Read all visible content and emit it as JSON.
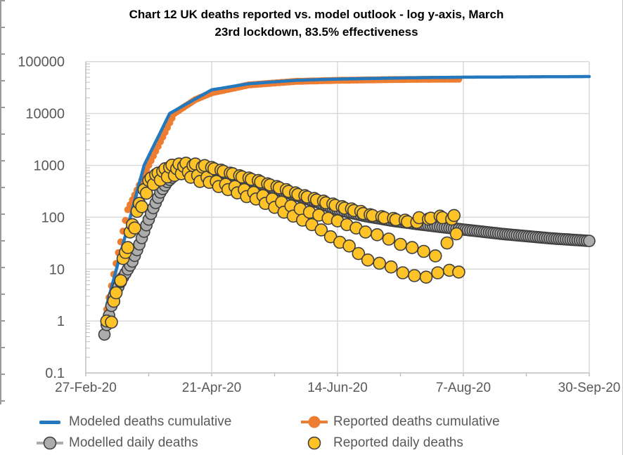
{
  "header": {
    "title_line1": "Chart 12 UK deaths reported vs. model outlook - log y-axis, March",
    "title_line2": "23rd lockdown, 83.5% effectiveness"
  },
  "colors": {
    "modeled_line": "#2478BE",
    "reported_cumulative": "#ED7D31",
    "modelled_daily_fill": "#ACACAC",
    "reported_daily_fill": "#FFC328",
    "marker_stroke": "#3F3F3F",
    "grid": "#D9D9D9",
    "axis": "#BFBFBF",
    "tick_text": "#595959",
    "title_text": "#000000"
  },
  "legend": {
    "items": [
      {
        "label": "Modeled deaths cumulative",
        "marker": "line",
        "color": "#2478BE"
      },
      {
        "label": "Reported deaths cumulative",
        "marker": "line-circle",
        "color": "#ED7D31"
      },
      {
        "label": "Modelled daily deaths",
        "marker": "circle-line",
        "color": "#ACACAC"
      },
      {
        "label": "Reported daily deaths",
        "marker": "circle",
        "color": "#FFC328"
      }
    ]
  },
  "chart_data": {
    "type": "line",
    "title": "Chart 12 UK deaths reported vs. model outlook - log y-axis, March 23rd lockdown, 83.5% effectiveness",
    "xlabel": "",
    "ylabel": "",
    "grid": true,
    "legend_position": "bottom",
    "x_axis": {
      "unit": "days since 27-Feb-20",
      "tick_days": [
        0,
        54,
        108,
        162,
        216
      ],
      "tick_labels": [
        "27-Feb-20",
        "21-Apr-20",
        "14-Jun-20",
        "7-Aug-20",
        "30-Sep-20"
      ],
      "minor_tick_step_days": 27
    },
    "y_axis": {
      "scale": "log",
      "range": [
        0.1,
        100000
      ],
      "ticks": [
        0.1,
        1,
        10,
        100,
        1000,
        10000,
        100000
      ],
      "tick_labels": [
        "0.1",
        "1",
        "10",
        "100",
        "1000",
        "10000",
        "100000"
      ]
    },
    "series": [
      {
        "name": "Modeled deaths cumulative",
        "type": "line",
        "z": 2,
        "color": "#2478BE",
        "line_width": 4.5,
        "day_range": [
          9,
          216
        ],
        "anchors": [
          [
            9,
            2
          ],
          [
            25,
            1000
          ],
          [
            36,
            10000
          ],
          [
            45,
            17000
          ],
          [
            54,
            28500
          ],
          [
            70,
            37500
          ],
          [
            90,
            43500
          ],
          [
            108,
            46000
          ],
          [
            140,
            48800
          ],
          [
            162,
            50000
          ],
          [
            216,
            51500
          ]
        ]
      },
      {
        "name": "Reported deaths cumulative",
        "type": "marker-line",
        "z": 1,
        "color": "#ED7D31",
        "marker_r": 5,
        "day_range": [
          8,
          160
        ],
        "anchors": [
          [
            8,
            1
          ],
          [
            12,
            8
          ],
          [
            18,
            140
          ],
          [
            27,
            1000
          ],
          [
            38,
            10000
          ],
          [
            47,
            18500
          ],
          [
            54,
            25000
          ],
          [
            70,
            35500
          ],
          [
            90,
            41500
          ],
          [
            108,
            43500
          ],
          [
            135,
            45200
          ],
          [
            160,
            45800
          ]
        ]
      },
      {
        "name": "Modelled daily deaths",
        "type": "marker-line",
        "z": 3,
        "color": "#ACACAC",
        "stroke": "#3F3F3F",
        "marker_r": 8,
        "day_range": [
          8,
          216
        ],
        "anchors": [
          [
            8,
            0.55
          ],
          [
            12,
            3
          ],
          [
            16,
            7
          ],
          [
            20,
            14
          ],
          [
            23,
            30
          ],
          [
            26,
            70
          ],
          [
            29,
            150
          ],
          [
            32,
            300
          ],
          [
            35,
            480
          ],
          [
            38,
            640
          ],
          [
            41,
            740
          ],
          [
            44,
            790
          ],
          [
            50,
            800
          ],
          [
            54,
            780
          ],
          [
            60,
            690
          ],
          [
            70,
            510
          ],
          [
            80,
            370
          ],
          [
            90,
            265
          ],
          [
            100,
            190
          ],
          [
            108,
            140
          ],
          [
            120,
            105
          ],
          [
            132,
            85
          ],
          [
            144,
            72
          ],
          [
            156,
            62
          ],
          [
            168,
            54
          ],
          [
            180,
            47
          ],
          [
            200,
            39
          ],
          [
            216,
            35
          ]
        ]
      },
      {
        "name": "Reported daily deaths",
        "type": "scatter",
        "z": 4,
        "color": "#FFC328",
        "stroke": "#3F3F3F",
        "marker_r": 8.5,
        "points": [
          [
            9,
            1
          ],
          [
            11,
            0.95
          ],
          [
            12,
            2.4
          ],
          [
            13,
            3.5
          ],
          [
            15,
            6
          ],
          [
            16,
            16
          ],
          [
            17,
            21
          ],
          [
            18,
            26
          ],
          [
            19,
            52
          ],
          [
            20,
            72
          ],
          [
            21,
            62
          ],
          [
            22,
            130
          ],
          [
            23,
            185
          ],
          [
            24,
            160
          ],
          [
            25,
            340
          ],
          [
            26,
            290
          ],
          [
            27,
            510
          ],
          [
            28,
            570
          ],
          [
            29,
            430
          ],
          [
            30,
            660
          ],
          [
            31,
            710
          ],
          [
            32,
            520
          ],
          [
            33,
            770
          ],
          [
            34,
            860
          ],
          [
            35,
            600
          ],
          [
            36,
            920
          ],
          [
            37,
            1010
          ],
          [
            38,
            640
          ],
          [
            39,
            860
          ],
          [
            40,
            1060
          ],
          [
            41,
            690
          ],
          [
            42,
            960
          ],
          [
            43,
            1100
          ],
          [
            44,
            740
          ],
          [
            45,
            590
          ],
          [
            46,
            990
          ],
          [
            47,
            1060
          ],
          [
            48,
            640
          ],
          [
            49,
            490
          ],
          [
            50,
            930
          ],
          [
            51,
            990
          ],
          [
            52,
            590
          ],
          [
            53,
            470
          ],
          [
            54,
            910
          ],
          [
            55,
            860
          ],
          [
            56,
            490
          ],
          [
            57,
            390
          ],
          [
            58,
            810
          ],
          [
            59,
            770
          ],
          [
            60,
            430
          ],
          [
            61,
            340
          ],
          [
            62,
            710
          ],
          [
            63,
            690
          ],
          [
            64,
            390
          ],
          [
            65,
            295
          ],
          [
            66,
            630
          ],
          [
            67,
            600
          ],
          [
            68,
            340
          ],
          [
            69,
            250
          ],
          [
            70,
            570
          ],
          [
            71,
            540
          ],
          [
            72,
            300
          ],
          [
            73,
            225
          ],
          [
            74,
            510
          ],
          [
            75,
            480
          ],
          [
            76,
            260
          ],
          [
            77,
            185
          ],
          [
            78,
            440
          ],
          [
            79,
            420
          ],
          [
            80,
            225
          ],
          [
            81,
            155
          ],
          [
            82,
            390
          ],
          [
            83,
            370
          ],
          [
            84,
            195
          ],
          [
            85,
            125
          ],
          [
            86,
            340
          ],
          [
            87,
            315
          ],
          [
            88,
            165
          ],
          [
            89,
            105
          ],
          [
            90,
            295
          ],
          [
            91,
            275
          ],
          [
            92,
            145
          ],
          [
            93,
            88
          ],
          [
            94,
            260
          ],
          [
            95,
            245
          ],
          [
            96,
            125
          ],
          [
            97,
            72
          ],
          [
            98,
            230
          ],
          [
            99,
            215
          ],
          [
            100,
            110
          ],
          [
            101,
            57
          ],
          [
            102,
            205
          ],
          [
            103,
            190
          ],
          [
            104,
            95
          ],
          [
            105,
            42
          ],
          [
            106,
            180
          ],
          [
            107,
            170
          ],
          [
            108,
            85
          ],
          [
            109,
            33
          ],
          [
            110,
            160
          ],
          [
            111,
            150
          ],
          [
            112,
            72
          ],
          [
            113,
            28
          ],
          [
            114,
            145
          ],
          [
            115,
            135
          ],
          [
            116,
            62
          ],
          [
            117,
            20
          ],
          [
            118,
            130
          ],
          [
            119,
            118
          ],
          [
            120,
            52
          ],
          [
            121,
            15
          ],
          [
            122,
            112
          ],
          [
            123,
            108
          ],
          [
            125,
            46
          ],
          [
            126,
            13
          ],
          [
            127,
            103
          ],
          [
            128,
            98
          ],
          [
            130,
            38
          ],
          [
            131,
            11
          ],
          [
            132,
            95
          ],
          [
            133,
            90
          ],
          [
            135,
            30
          ],
          [
            136,
            8.5
          ],
          [
            137,
            88
          ],
          [
            138,
            82
          ],
          [
            140,
            26
          ],
          [
            141,
            7.5
          ],
          [
            142,
            80
          ],
          [
            143,
            98
          ],
          [
            145,
            22
          ],
          [
            146,
            7
          ],
          [
            147,
            92
          ],
          [
            148,
            96
          ],
          [
            150,
            18
          ],
          [
            151,
            8.5
          ],
          [
            152,
            105
          ],
          [
            153,
            98
          ],
          [
            155,
            32
          ],
          [
            156,
            9.5
          ],
          [
            157,
            92
          ],
          [
            158,
            108
          ],
          [
            159,
            48
          ],
          [
            160,
            8.8
          ]
        ]
      }
    ]
  }
}
